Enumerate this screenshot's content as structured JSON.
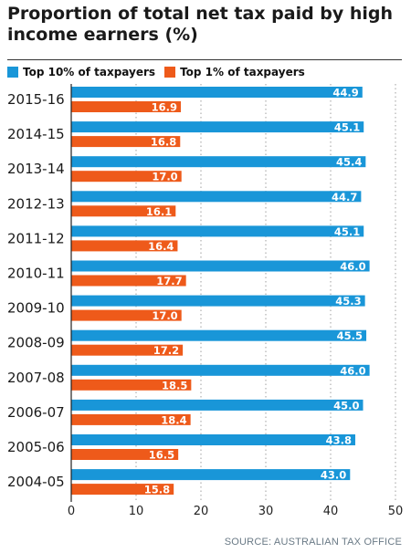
{
  "title": "Proportion of total net tax paid by high income earners (%)",
  "source": "SOURCE: AUSTRALIAN TAX OFFICE",
  "colors": {
    "top10": "#1996d8",
    "top1": "#ee5a1a",
    "grid": "#b5b5b5"
  },
  "chart_data": {
    "type": "bar",
    "orientation": "horizontal",
    "title": "Proportion of total net tax paid by high income earners (%)",
    "categories": [
      "2015-16",
      "2014-15",
      "2013-14",
      "2012-13",
      "2011-12",
      "2010-11",
      "2009-10",
      "2008-09",
      "2007-08",
      "2006-07",
      "2005-06",
      "2004-05"
    ],
    "series": [
      {
        "name": "Top 10% of taxpayers",
        "values": [
          44.9,
          45.1,
          45.4,
          44.7,
          45.1,
          46.0,
          45.3,
          45.5,
          46.0,
          45.0,
          43.8,
          43.0
        ],
        "labels": [
          "44.9",
          "45.1",
          "45.4",
          "44.7",
          "45.1",
          "46.0",
          "45.3",
          "45.5",
          "46.0",
          "45.0",
          "43.8",
          "43.0"
        ]
      },
      {
        "name": "Top 1% of taxpayers",
        "values": [
          16.9,
          16.8,
          17.0,
          16.1,
          16.4,
          17.7,
          17.0,
          17.2,
          18.5,
          18.4,
          16.5,
          15.8
        ],
        "labels": [
          "16.9",
          "16.8",
          "17.0",
          "16.1",
          "16.4",
          "17.7",
          "17.0",
          "17.2",
          "18.5",
          "18.4",
          "16.5",
          "15.8"
        ]
      }
    ],
    "xlim": [
      0,
      50
    ],
    "xticks": [
      0,
      10,
      20,
      30,
      40,
      50
    ],
    "grid": "vertical dotted",
    "legend_position": "top-left"
  }
}
